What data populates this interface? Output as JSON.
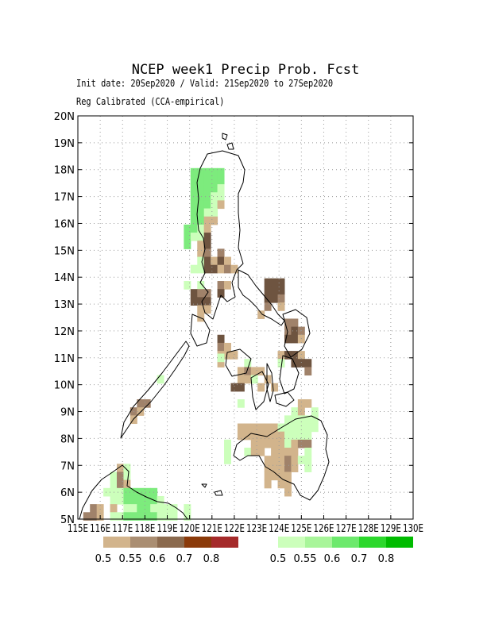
{
  "header": {
    "title": "NCEP week1 Precip Prob. Fcst",
    "subtitle1": "Init date: 20Sep2020 / Valid: 21Sep2020 to 27Sep2020",
    "subtitle2": "Reg Calibrated (CCA-empirical)"
  },
  "axes": {
    "lat_labels": [
      "5N",
      "6N",
      "7N",
      "8N",
      "9N",
      "10N",
      "11N",
      "12N",
      "13N",
      "14N",
      "15N",
      "16N",
      "17N",
      "18N",
      "19N",
      "20N"
    ],
    "lon_labels": [
      "115E",
      "116E",
      "117E",
      "118E",
      "119E",
      "120E",
      "121E",
      "122E",
      "123E",
      "124E",
      "125E",
      "126E",
      "127E",
      "128E",
      "129E",
      "130E"
    ],
    "lat_range": [
      5,
      20
    ],
    "lon_range": [
      115,
      130
    ],
    "grid": "dotted"
  },
  "legend": {
    "dry": {
      "labels": [
        "0.5",
        "0.55",
        "0.6",
        "0.7",
        "0.8"
      ],
      "colors": [
        "#d2b48c",
        "#aa8e72",
        "#8b6a4e",
        "#8b3a0a",
        "#a52a2a"
      ]
    },
    "wet": {
      "labels": [
        "0.5",
        "0.55",
        "0.6",
        "0.7",
        "0.8"
      ],
      "colors": [
        "#ccffbb",
        "#a8f59a",
        "#6de96d",
        "#2cd82c",
        "#00bb00"
      ]
    }
  },
  "palette": {
    "L1": "#d2b48c",
    "D1": "#a0826a",
    "D2": "#6e5440",
    "G1": "#ccffbb",
    "G2": "#7deb7d"
  },
  "cells": [
    [
      120.2,
      17.9,
      "G2"
    ],
    [
      120.5,
      17.9,
      "G2"
    ],
    [
      120.8,
      17.9,
      "G2"
    ],
    [
      121.1,
      17.9,
      "G2"
    ],
    [
      121.4,
      17.9,
      "G2"
    ],
    [
      120.2,
      17.6,
      "G2"
    ],
    [
      120.5,
      17.6,
      "G2"
    ],
    [
      120.8,
      17.6,
      "G2"
    ],
    [
      121.1,
      17.6,
      "G2"
    ],
    [
      121.4,
      17.6,
      "G2"
    ],
    [
      120.2,
      17.3,
      "G2"
    ],
    [
      120.5,
      17.3,
      "G2"
    ],
    [
      120.8,
      17.3,
      "G2"
    ],
    [
      121.1,
      17.3,
      "G2"
    ],
    [
      121.4,
      17.3,
      "G1"
    ],
    [
      120.2,
      17.0,
      "G2"
    ],
    [
      120.5,
      17.0,
      "G2"
    ],
    [
      120.8,
      17.0,
      "G2"
    ],
    [
      121.1,
      17.0,
      "G1"
    ],
    [
      121.4,
      17.0,
      "G1"
    ],
    [
      120.2,
      16.7,
      "G2"
    ],
    [
      120.5,
      16.7,
      "G2"
    ],
    [
      120.8,
      16.7,
      "G2"
    ],
    [
      121.1,
      16.7,
      "G1"
    ],
    [
      121.4,
      16.7,
      "L1"
    ],
    [
      120.2,
      16.4,
      "G2"
    ],
    [
      120.5,
      16.4,
      "G2"
    ],
    [
      120.8,
      16.4,
      "G1"
    ],
    [
      121.1,
      16.4,
      "G1"
    ],
    [
      120.2,
      16.1,
      "G2"
    ],
    [
      120.5,
      16.1,
      "G2"
    ],
    [
      120.8,
      16.1,
      "L1"
    ],
    [
      121.1,
      16.1,
      "L1"
    ],
    [
      119.9,
      15.8,
      "G2"
    ],
    [
      120.2,
      15.8,
      "G2"
    ],
    [
      120.5,
      15.8,
      "G1"
    ],
    [
      120.8,
      15.8,
      "L1"
    ],
    [
      119.9,
      15.5,
      "G2"
    ],
    [
      120.2,
      15.5,
      "G1"
    ],
    [
      120.5,
      15.5,
      "G1"
    ],
    [
      120.8,
      15.5,
      "D2"
    ],
    [
      119.9,
      15.2,
      "G2"
    ],
    [
      120.5,
      15.2,
      "L1"
    ],
    [
      120.8,
      15.2,
      "D2"
    ],
    [
      120.5,
      14.9,
      "L1"
    ],
    [
      120.8,
      14.9,
      "D1"
    ],
    [
      121.4,
      14.9,
      "D1"
    ],
    [
      120.5,
      14.6,
      "G1"
    ],
    [
      120.8,
      14.6,
      "D2"
    ],
    [
      121.1,
      14.6,
      "L1"
    ],
    [
      121.4,
      14.6,
      "D2"
    ],
    [
      121.7,
      14.6,
      "L1"
    ],
    [
      120.2,
      14.3,
      "G1"
    ],
    [
      120.5,
      14.3,
      "G1"
    ],
    [
      120.8,
      14.3,
      "D2"
    ],
    [
      121.1,
      14.3,
      "D2"
    ],
    [
      121.4,
      14.3,
      "L1"
    ],
    [
      121.7,
      14.3,
      "D1"
    ],
    [
      122.0,
      14.3,
      "L1"
    ],
    [
      119.9,
      13.7,
      "G1"
    ],
    [
      120.5,
      13.7,
      "G1"
    ],
    [
      121.4,
      13.7,
      "D1"
    ],
    [
      121.7,
      13.7,
      "L1"
    ],
    [
      120.2,
      13.4,
      "D2"
    ],
    [
      120.5,
      13.4,
      "D1"
    ],
    [
      120.8,
      13.4,
      "D1"
    ],
    [
      121.4,
      13.4,
      "D2"
    ],
    [
      120.2,
      13.1,
      "D2"
    ],
    [
      120.5,
      13.1,
      "D2"
    ],
    [
      120.8,
      13.1,
      "D2"
    ],
    [
      120.5,
      12.8,
      "L1"
    ],
    [
      120.8,
      12.8,
      "L1"
    ],
    [
      120.5,
      12.5,
      "L1"
    ],
    [
      123.5,
      13.8,
      "D2"
    ],
    [
      123.8,
      13.8,
      "D2"
    ],
    [
      124.1,
      13.8,
      "D2"
    ],
    [
      123.5,
      13.5,
      "D2"
    ],
    [
      123.8,
      13.5,
      "D2"
    ],
    [
      124.1,
      13.5,
      "D2"
    ],
    [
      123.5,
      13.2,
      "D2"
    ],
    [
      123.8,
      13.2,
      "D2"
    ],
    [
      124.1,
      13.2,
      "D1"
    ],
    [
      123.5,
      12.9,
      "D1"
    ],
    [
      124.1,
      12.9,
      "L1"
    ],
    [
      123.2,
      12.6,
      "L1"
    ],
    [
      124.4,
      12.3,
      "D1"
    ],
    [
      124.7,
      12.3,
      "D1"
    ],
    [
      124.4,
      12.0,
      "D1"
    ],
    [
      124.7,
      12.0,
      "D2"
    ],
    [
      125.0,
      12.0,
      "D1"
    ],
    [
      124.4,
      11.7,
      "D2"
    ],
    [
      124.7,
      11.7,
      "D2"
    ],
    [
      125.0,
      11.7,
      "L1"
    ],
    [
      121.4,
      11.7,
      "D2"
    ],
    [
      121.4,
      11.4,
      "D1"
    ],
    [
      121.7,
      11.4,
      "L1"
    ],
    [
      121.4,
      11.1,
      "L1"
    ],
    [
      121.7,
      11.1,
      "L1"
    ],
    [
      122.0,
      11.1,
      "L1"
    ],
    [
      121.4,
      10.8,
      "L1"
    ],
    [
      121.4,
      11.0,
      "G1"
    ],
    [
      124.1,
      11.1,
      "L1"
    ],
    [
      124.4,
      11.1,
      "D2"
    ],
    [
      124.7,
      11.1,
      "D2"
    ],
    [
      125.0,
      11.1,
      "L1"
    ],
    [
      124.1,
      10.8,
      "G1"
    ],
    [
      124.7,
      10.8,
      "D2"
    ],
    [
      125.0,
      10.8,
      "D2"
    ],
    [
      125.3,
      10.8,
      "D2"
    ],
    [
      125.3,
      10.5,
      "D1"
    ],
    [
      122.6,
      10.8,
      "G1"
    ],
    [
      122.3,
      10.5,
      "L1"
    ],
    [
      122.6,
      10.5,
      "D1"
    ],
    [
      122.9,
      10.5,
      "L1"
    ],
    [
      123.2,
      10.5,
      "L1"
    ],
    [
      122.3,
      10.2,
      "L1"
    ],
    [
      122.6,
      10.2,
      "L1"
    ],
    [
      122.9,
      10.2,
      "G1"
    ],
    [
      123.5,
      10.2,
      "L1"
    ],
    [
      122.0,
      9.9,
      "D2"
    ],
    [
      122.3,
      9.9,
      "D2"
    ],
    [
      123.2,
      9.9,
      "L1"
    ],
    [
      123.8,
      9.9,
      "L1"
    ],
    [
      122.3,
      9.3,
      "G1"
    ],
    [
      125.0,
      9.3,
      "L1"
    ],
    [
      125.3,
      9.3,
      "L1"
    ],
    [
      124.7,
      9.0,
      "G1"
    ],
    [
      125.0,
      9.0,
      "L1"
    ],
    [
      125.6,
      9.0,
      "G1"
    ],
    [
      124.4,
      8.7,
      "G1"
    ],
    [
      124.7,
      8.7,
      "G1"
    ],
    [
      125.0,
      8.7,
      "G1"
    ],
    [
      125.3,
      8.7,
      "G1"
    ],
    [
      125.6,
      8.7,
      "G1"
    ],
    [
      122.3,
      8.4,
      "L1"
    ],
    [
      122.6,
      8.4,
      "L1"
    ],
    [
      122.9,
      8.4,
      "L1"
    ],
    [
      123.2,
      8.4,
      "L1"
    ],
    [
      123.5,
      8.4,
      "L1"
    ],
    [
      123.8,
      8.4,
      "L1"
    ],
    [
      124.1,
      8.4,
      "G1"
    ],
    [
      124.4,
      8.4,
      "G1"
    ],
    [
      124.7,
      8.4,
      "G1"
    ],
    [
      125.0,
      8.4,
      "G1"
    ],
    [
      125.3,
      8.4,
      "G1"
    ],
    [
      125.6,
      8.4,
      "G1"
    ],
    [
      122.3,
      8.1,
      "L1"
    ],
    [
      122.6,
      8.1,
      "L1"
    ],
    [
      122.9,
      8.1,
      "L1"
    ],
    [
      123.2,
      8.1,
      "L1"
    ],
    [
      123.5,
      8.1,
      "L1"
    ],
    [
      123.8,
      8.1,
      "L1"
    ],
    [
      124.1,
      8.1,
      "L1"
    ],
    [
      124.4,
      8.1,
      "G1"
    ],
    [
      124.7,
      8.1,
      "G1"
    ],
    [
      125.0,
      8.1,
      "G1"
    ],
    [
      125.3,
      8.1,
      "G1"
    ],
    [
      121.7,
      7.8,
      "G1"
    ],
    [
      122.9,
      7.8,
      "L1"
    ],
    [
      123.2,
      7.8,
      "L1"
    ],
    [
      123.5,
      7.8,
      "L1"
    ],
    [
      123.8,
      7.8,
      "L1"
    ],
    [
      124.1,
      7.8,
      "L1"
    ],
    [
      124.4,
      7.8,
      "G1"
    ],
    [
      124.7,
      7.8,
      "L1"
    ],
    [
      125.0,
      7.8,
      "D1"
    ],
    [
      125.3,
      7.8,
      "D1"
    ],
    [
      121.7,
      7.5,
      "G1"
    ],
    [
      122.6,
      7.5,
      "G1"
    ],
    [
      122.9,
      7.5,
      "L1"
    ],
    [
      123.2,
      7.5,
      "L1"
    ],
    [
      123.8,
      7.5,
      "L1"
    ],
    [
      124.1,
      7.5,
      "L1"
    ],
    [
      124.4,
      7.5,
      "L1"
    ],
    [
      124.7,
      7.5,
      "L1"
    ],
    [
      125.3,
      7.5,
      "G1"
    ],
    [
      121.7,
      7.2,
      "G1"
    ],
    [
      123.5,
      7.2,
      "L1"
    ],
    [
      123.8,
      7.2,
      "L1"
    ],
    [
      124.1,
      7.2,
      "L1"
    ],
    [
      124.4,
      7.2,
      "D1"
    ],
    [
      124.7,
      7.2,
      "L1"
    ],
    [
      125.0,
      7.2,
      "G1"
    ],
    [
      125.3,
      7.2,
      "G1"
    ],
    [
      123.5,
      6.9,
      "L1"
    ],
    [
      123.8,
      6.9,
      "L1"
    ],
    [
      124.1,
      6.9,
      "L1"
    ],
    [
      124.4,
      6.9,
      "D1"
    ],
    [
      124.7,
      6.9,
      "L1"
    ],
    [
      125.3,
      6.9,
      "G1"
    ],
    [
      123.5,
      6.6,
      "L1"
    ],
    [
      123.8,
      6.6,
      "L1"
    ],
    [
      124.1,
      6.6,
      "L1"
    ],
    [
      124.4,
      6.6,
      "L1"
    ],
    [
      123.5,
      6.3,
      "L1"
    ],
    [
      124.1,
      6.3,
      "L1"
    ],
    [
      124.4,
      6.3,
      "L1"
    ],
    [
      124.4,
      6.0,
      "L1"
    ],
    [
      117.8,
      9.3,
      "D1"
    ],
    [
      118.1,
      9.3,
      "D1"
    ],
    [
      117.5,
      9.0,
      "D1"
    ],
    [
      117.8,
      9.0,
      "L1"
    ],
    [
      117.5,
      8.7,
      "L1"
    ],
    [
      118.7,
      10.2,
      "G1"
    ],
    [
      116.9,
      6.9,
      "L1"
    ],
    [
      117.2,
      6.9,
      "G1"
    ],
    [
      116.6,
      6.6,
      "G1"
    ],
    [
      116.9,
      6.6,
      "D1"
    ],
    [
      117.2,
      6.6,
      "G1"
    ],
    [
      116.6,
      6.3,
      "G1"
    ],
    [
      116.9,
      6.3,
      "D1"
    ],
    [
      117.2,
      6.3,
      "L1"
    ],
    [
      116.3,
      6.0,
      "G1"
    ],
    [
      116.6,
      6.0,
      "G1"
    ],
    [
      116.9,
      6.0,
      "G1"
    ],
    [
      117.2,
      6.0,
      "G2"
    ],
    [
      117.5,
      6.0,
      "G2"
    ],
    [
      117.8,
      6.0,
      "G2"
    ],
    [
      118.1,
      6.0,
      "G2"
    ],
    [
      118.4,
      6.0,
      "G2"
    ],
    [
      116.6,
      5.7,
      "G1"
    ],
    [
      116.9,
      5.7,
      "G1"
    ],
    [
      117.2,
      5.7,
      "G2"
    ],
    [
      117.5,
      5.7,
      "G2"
    ],
    [
      117.8,
      5.7,
      "G2"
    ],
    [
      118.1,
      5.7,
      "G2"
    ],
    [
      118.4,
      5.7,
      "G2"
    ],
    [
      118.7,
      5.7,
      "G1"
    ],
    [
      115.7,
      5.4,
      "D1"
    ],
    [
      116.0,
      5.4,
      "L1"
    ],
    [
      116.6,
      5.4,
      "L1"
    ],
    [
      117.2,
      5.4,
      "G1"
    ],
    [
      117.5,
      5.4,
      "G1"
    ],
    [
      117.8,
      5.4,
      "G2"
    ],
    [
      118.1,
      5.4,
      "G2"
    ],
    [
      118.4,
      5.4,
      "G1"
    ],
    [
      118.7,
      5.4,
      "G1"
    ],
    [
      119.0,
      5.4,
      "G1"
    ],
    [
      119.3,
      5.4,
      "G1"
    ],
    [
      119.9,
      5.4,
      "G1"
    ],
    [
      115.4,
      5.1,
      "D1"
    ],
    [
      115.7,
      5.1,
      "D1"
    ],
    [
      116.0,
      5.1,
      "L1"
    ],
    [
      116.6,
      5.1,
      "G1"
    ],
    [
      116.9,
      5.1,
      "G1"
    ],
    [
      117.2,
      5.1,
      "G2"
    ],
    [
      117.5,
      5.1,
      "G2"
    ],
    [
      117.8,
      5.1,
      "G2"
    ],
    [
      118.1,
      5.1,
      "G2"
    ],
    [
      118.4,
      5.1,
      "G2"
    ],
    [
      118.7,
      5.1,
      "G1"
    ],
    [
      119.0,
      5.1,
      "G1"
    ],
    [
      119.3,
      5.1,
      "G1"
    ],
    [
      119.9,
      5.1,
      "G1"
    ]
  ]
}
